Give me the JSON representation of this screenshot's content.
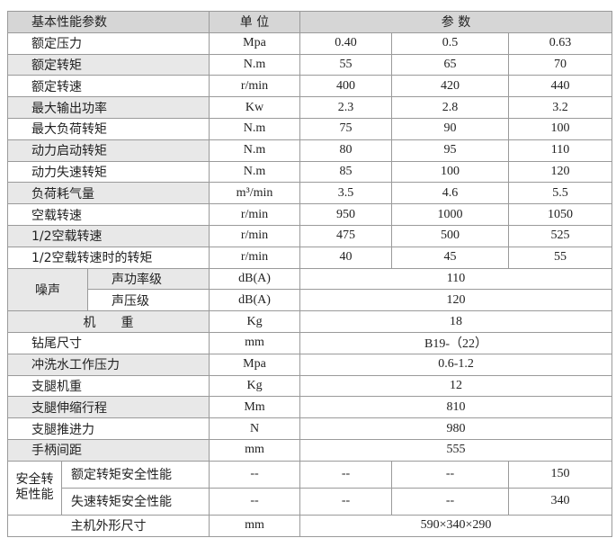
{
  "header": {
    "item": "基本性能参数",
    "unit": "单 位",
    "params": "参 数"
  },
  "rows": [
    {
      "item": "额定压力",
      "unit": "Mpa",
      "values": [
        "0.40",
        "0.5",
        "0.63"
      ]
    },
    {
      "item": "额定转矩",
      "unit": "N.m",
      "values": [
        "55",
        "65",
        "70"
      ]
    },
    {
      "item": "额定转速",
      "unit": "r/min",
      "values": [
        "400",
        "420",
        "440"
      ]
    },
    {
      "item": "最大输出功率",
      "unit": "Kw",
      "values": [
        "2.3",
        "2.8",
        "3.2"
      ]
    },
    {
      "item": "最大负荷转矩",
      "unit": "N.m",
      "values": [
        "75",
        "90",
        "100"
      ]
    },
    {
      "item": "动力启动转矩",
      "unit": "N.m",
      "values": [
        "80",
        "95",
        "110"
      ]
    },
    {
      "item": "动力失速转矩",
      "unit": "N.m",
      "values": [
        "85",
        "100",
        "120"
      ]
    },
    {
      "item": "负荷耗气量",
      "unit": "m³/min",
      "values": [
        "3.5",
        "4.6",
        "5.5"
      ]
    },
    {
      "item": "空载转速",
      "unit": "r/min",
      "values": [
        "950",
        "1000",
        "1050"
      ]
    },
    {
      "item": "1/2空载转速",
      "unit": "r/min",
      "values": [
        "475",
        "500",
        "525"
      ]
    },
    {
      "item": "1/2空载转速时的转矩",
      "unit": "r/min",
      "values": [
        "40",
        "45",
        "55"
      ]
    }
  ],
  "noise": {
    "item": "噪声",
    "rows": [
      {
        "item": "声功率级",
        "unit": "dB(A)",
        "value": "110"
      },
      {
        "item": "声压级",
        "unit": "dB(A)",
        "value": "120"
      }
    ]
  },
  "rows2": [
    {
      "item": "机　　重",
      "unit": "Kg",
      "value": "18"
    },
    {
      "item": "钻尾尺寸",
      "unit": "mm",
      "value": "B19-（22）"
    },
    {
      "item": "冲洗水工作压力",
      "unit": "Mpa",
      "value": "0.6-1.2"
    },
    {
      "item": "支腿机重",
      "unit": "Kg",
      "value": "12"
    },
    {
      "item": "支腿伸缩行程",
      "unit": "Mm",
      "value": "810"
    },
    {
      "item": "支腿推进力",
      "unit": "N",
      "value": "980"
    },
    {
      "item": "手柄间距",
      "unit": "mm",
      "value": "555"
    }
  ],
  "safety": {
    "item": "安全转矩性能",
    "rows": [
      {
        "item": "额定转矩安全性能",
        "values": [
          "--",
          "--",
          "--",
          "150"
        ]
      },
      {
        "item": "失速转矩安全性能",
        "values": [
          "--",
          "--",
          "--",
          "340"
        ]
      }
    ]
  },
  "footer": {
    "item": "主机外形尺寸",
    "unit": "mm",
    "value": "590×340×290"
  }
}
